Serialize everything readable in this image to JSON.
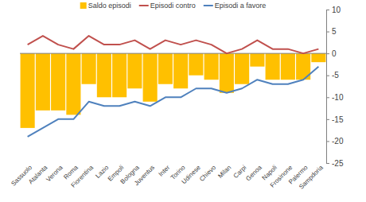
{
  "chart_data": {
    "type": "bar",
    "categories": [
      "Sassuolo",
      "Atalanta",
      "Verona",
      "Roma",
      "Fiorentina",
      "Lazio",
      "Empoli",
      "Bologna",
      "Juventus",
      "Inter",
      "Torino",
      "Udinese",
      "Chievo",
      "Milan",
      "Carpi",
      "Genoa",
      "Napoli",
      "Frosinone",
      "Palermo",
      "Sampdoria"
    ],
    "series": [
      {
        "name": "Saldo episodi",
        "type": "bar",
        "color": "#FFC000",
        "values": [
          -17,
          -13,
          -13,
          -14,
          -7,
          -10,
          -10,
          -8,
          -11,
          -7,
          -8,
          -5,
          -6,
          -9,
          -7,
          -3,
          -6,
          -6,
          -6,
          -2
        ]
      },
      {
        "name": "Episodi contro",
        "type": "line",
        "color": "#C0504D",
        "values": [
          2,
          4,
          2,
          1,
          4,
          2,
          2,
          3,
          1,
          3,
          2,
          3,
          2,
          0,
          1,
          3,
          1,
          1,
          0,
          1
        ]
      },
      {
        "name": "Episodi a favore",
        "type": "line",
        "color": "#4F81BD",
        "values": [
          -19,
          -17,
          -15,
          -15,
          -11,
          -12,
          -12,
          -11,
          -12,
          -10,
          -10,
          -8,
          -8,
          -9,
          -8,
          -6,
          -7,
          -7,
          -6,
          -3
        ]
      }
    ],
    "ylim": [
      -25,
      10
    ],
    "yticks": [
      -25,
      -20,
      -15,
      -10,
      -5,
      0,
      5,
      10
    ],
    "grid": false,
    "legend": "top"
  }
}
